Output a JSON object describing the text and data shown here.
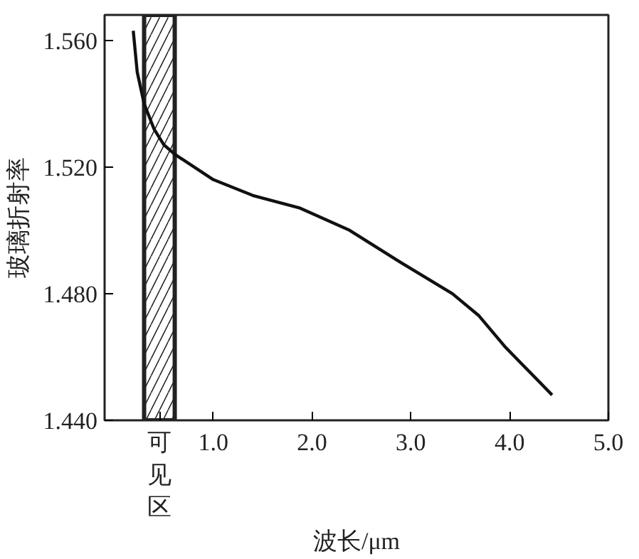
{
  "chart_data": {
    "type": "line",
    "xlabel": "波长/μm",
    "ylabel": "玻璃折射率",
    "x": [
      0.19,
      0.23,
      0.3,
      0.4,
      0.5,
      0.61,
      1.0,
      1.4,
      1.88,
      2.38,
      2.89,
      3.42,
      3.69,
      3.96,
      4.43
    ],
    "series": [
      {
        "color": "#111111",
        "values": [
          1.563,
          1.55,
          1.54,
          1.532,
          1.527,
          1.524,
          1.516,
          1.511,
          1.507,
          1.5,
          1.49,
          1.48,
          1.473,
          1.463,
          1.448
        ]
      }
    ],
    "xlim": [
      -0.1,
      5.0
    ],
    "ylim": [
      1.44,
      1.568
    ],
    "xticks": [
      {
        "value": 1,
        "label": "1.0"
      },
      {
        "value": 2,
        "label": "2.0"
      },
      {
        "value": 3,
        "label": "3.0"
      },
      {
        "value": 4,
        "label": "4.0"
      },
      {
        "value": 5,
        "label": "5.0"
      }
    ],
    "yticks": [
      {
        "value": 1.44,
        "label": "1.440"
      },
      {
        "value": 1.48,
        "label": "1.480"
      },
      {
        "value": 1.52,
        "label": "1.520"
      },
      {
        "value": 1.56,
        "label": "1.560"
      }
    ],
    "bands": [
      {
        "axis": "x",
        "from": 0.3,
        "to": 0.61,
        "label": "可见区"
      }
    ],
    "grid": false,
    "marker": "none",
    "line_style": "solid"
  }
}
